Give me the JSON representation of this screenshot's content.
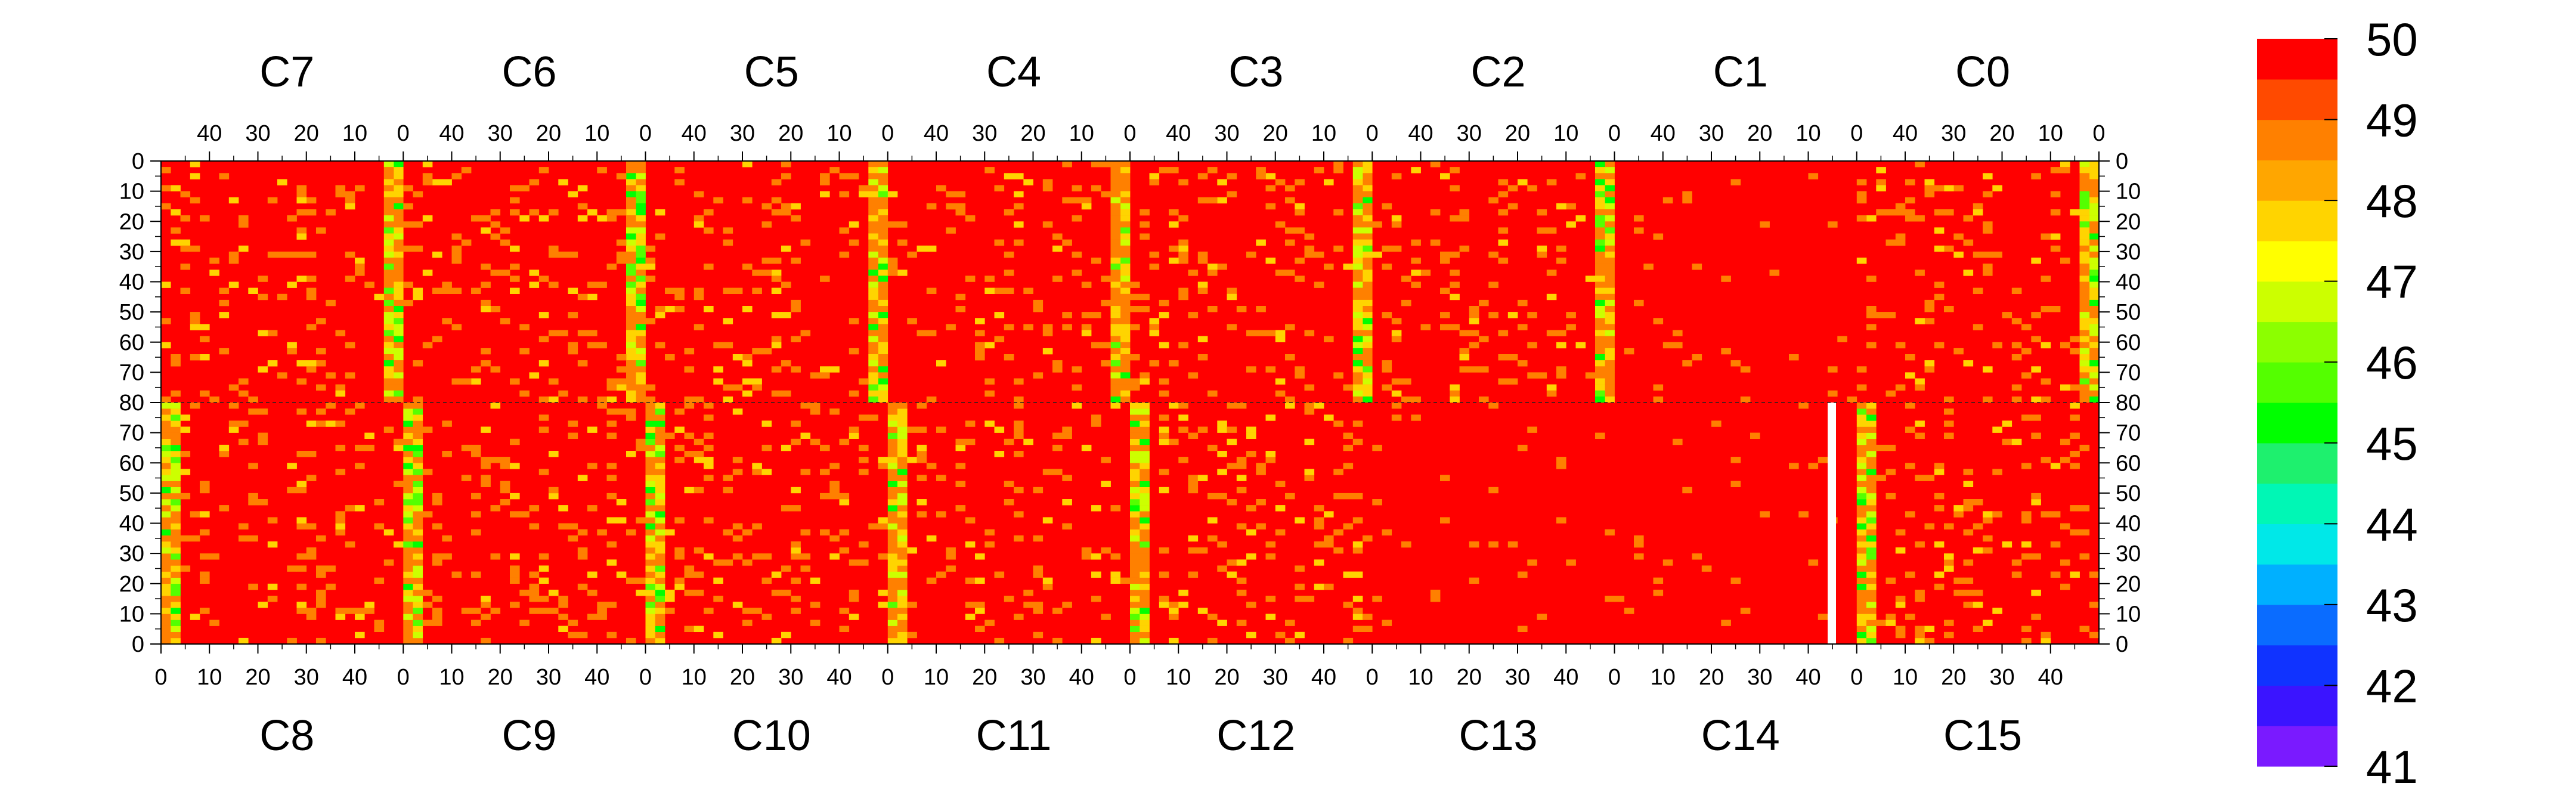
{
  "chart_data": {
    "type": "heatmap",
    "title": "",
    "top_channels": [
      "C7",
      "C6",
      "C5",
      "C4",
      "C3",
      "C2",
      "C1",
      "C0"
    ],
    "bottom_channels": [
      "C8",
      "C9",
      "C10",
      "C11",
      "C12",
      "C13",
      "C14",
      "C15"
    ],
    "x_range_per_channel": [
      0,
      50
    ],
    "top_x_tick_labels": [
      "40",
      "30",
      "20",
      "10",
      "0"
    ],
    "bottom_x_tick_labels": [
      "0",
      "10",
      "20",
      "30",
      "40"
    ],
    "y_range_per_half": [
      0,
      80
    ],
    "y_tick_labels_top_half": [
      "0",
      "10",
      "20",
      "30",
      "40",
      "50",
      "60",
      "70",
      "80"
    ],
    "y_tick_labels_bottom_half": [
      "70",
      "60",
      "50",
      "40",
      "30",
      "20",
      "10",
      "0"
    ],
    "z_range": [
      41,
      50
    ],
    "colorbar_labels": [
      "50",
      "49",
      "48",
      "47",
      "46",
      "45",
      "44",
      "43",
      "42",
      "41"
    ],
    "colormap": [
      "#7a1aff",
      "#3b14ff",
      "#1033ff",
      "#0a6cff",
      "#00b0ff",
      "#00e8e8",
      "#00f7b5",
      "#1ef06e",
      "#00ff00",
      "#54ff00",
      "#8cff00",
      "#ccff00",
      "#ffff00",
      "#ffd400",
      "#ffa600",
      "#ff8000",
      "#ff4a00",
      "#ff0000"
    ],
    "grid": false,
    "legend": "colorbar-right",
    "notes": {
      "dominant_value": 50,
      "low_value_columns_near": [
        0
      ],
      "saturated_channels": [
        "C13",
        "C14",
        "C1"
      ],
      "missing_column": {
        "channel": "C14",
        "x": 44,
        "y_range": [
          0,
          80
        ]
      }
    }
  }
}
